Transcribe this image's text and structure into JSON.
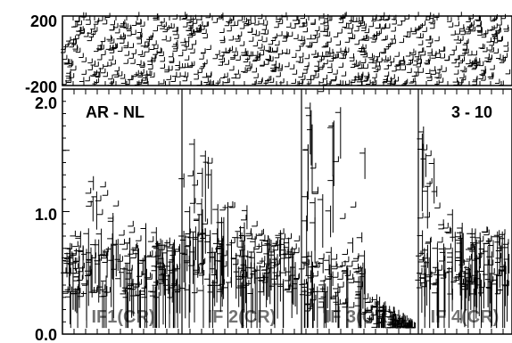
{
  "chart_data": [
    {
      "type": "scatter",
      "panel": "top",
      "marker": "plus",
      "title": "",
      "xlabel": "",
      "ylabel": "",
      "ylim": [
        -200,
        200
      ],
      "yticks": [
        {
          "value": 200,
          "label": "200"
        },
        {
          "value": -200,
          "label": "-200"
        }
      ],
      "pattern": "dense random scatter spanning full range",
      "n_points": 900
    },
    {
      "type": "scatter",
      "panel": "bottom",
      "marker": "plus",
      "title": "",
      "xlabel": "",
      "ylabel": "",
      "ylim": [
        0.0,
        2.0
      ],
      "yticks": [
        {
          "value": 0.0,
          "label": "0.0"
        },
        {
          "value": 1.0,
          "label": "1.0"
        },
        {
          "value": 2.0,
          "label": "2.0"
        }
      ],
      "panel_labels": [
        "AR - NL",
        "3 - 10"
      ],
      "window_labels": [
        "IF1(CR)",
        "IF 2(CR)",
        "IF 3(CR)",
        "IF 4(CR)"
      ],
      "segments": [
        {
          "id": "if1",
          "label_index": 0,
          "baseline": 0.45,
          "amplitude": 0.45,
          "peak_at": 0.3,
          "peak": 1.2,
          "decay": 0.25
        },
        {
          "id": "if2",
          "label_index": 1,
          "baseline": 0.5,
          "amplitude": 0.5,
          "peak_at": 0.1,
          "peak": 1.5,
          "decay": 0.3
        },
        {
          "id": "if3",
          "label_index": 2,
          "baseline": 0.35,
          "amplitude": 0.5,
          "peak_at": 0.15,
          "peak": 2.0,
          "decay": 0.55
        },
        {
          "id": "if4",
          "label_index": 3,
          "baseline": 0.5,
          "amplitude": 0.5,
          "peak_at": 0.02,
          "peak": 1.7,
          "decay": 0.2
        }
      ]
    }
  ]
}
